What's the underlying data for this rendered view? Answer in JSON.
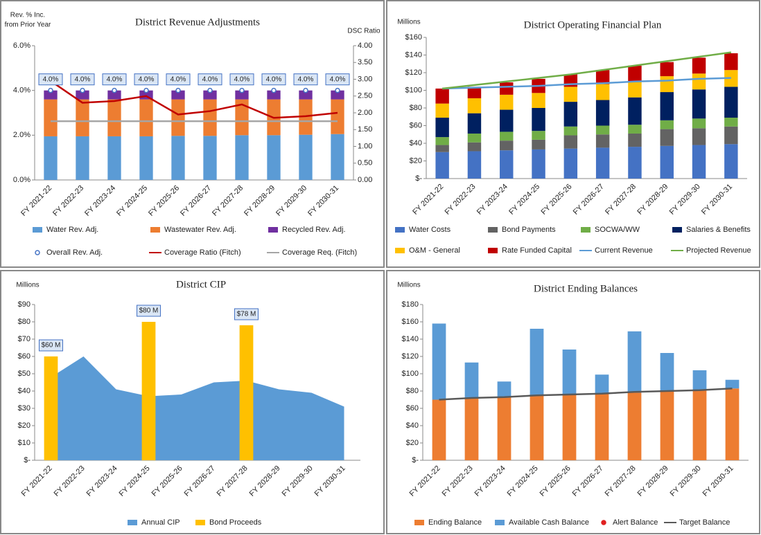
{
  "chart_data": [
    {
      "type": "bar",
      "title": "District Revenue Adjustments",
      "y_label": [
        "Rev. % Inc.",
        "from Prior Year"
      ],
      "y2_label": "DSC Ratio",
      "stacked": true,
      "grid": false,
      "categories": [
        "FY 2021-22",
        "FY 2022-23",
        "FY 2023-24",
        "FY 2024-25",
        "FY 2025-26",
        "FY 2026-27",
        "FY 2027-28",
        "FY 2028-29",
        "FY 2029-30",
        "FY 2030-31"
      ],
      "ylim": [
        0,
        6
      ],
      "yticks": [
        {
          "value": 0,
          "label": "0.0%"
        },
        {
          "value": 2,
          "label": "2.0%"
        },
        {
          "value": 4,
          "label": "4.0%"
        },
        {
          "value": 6,
          "label": "6.0%"
        }
      ],
      "y2lim": [
        0,
        4
      ],
      "y2ticks": [
        {
          "value": 0,
          "label": "0.00"
        },
        {
          "value": 0.5,
          "label": "0.50"
        },
        {
          "value": 1,
          "label": "1.00"
        },
        {
          "value": 1.5,
          "label": "1.50"
        },
        {
          "value": 2,
          "label": "2.00"
        },
        {
          "value": 2.5,
          "label": "2.50"
        },
        {
          "value": 3,
          "label": "3.00"
        },
        {
          "value": 3.5,
          "label": "3.50"
        },
        {
          "value": 4,
          "label": "4.00"
        }
      ],
      "series": [
        {
          "name": "Water Rev. Adj.",
          "kind": "bar",
          "color": "#5b9bd5",
          "values": [
            1.95,
            1.95,
            1.95,
            1.95,
            1.97,
            1.97,
            2.0,
            2.0,
            2.02,
            2.05
          ]
        },
        {
          "name": "Wastewater Rev. Adj.",
          "kind": "bar",
          "color": "#ed7d31",
          "values": [
            1.65,
            1.65,
            1.65,
            1.65,
            1.63,
            1.63,
            1.6,
            1.6,
            1.58,
            1.55
          ]
        },
        {
          "name": "Recycled Rev. Adj.",
          "kind": "bar",
          "color": "#7030a0",
          "values": [
            0.4,
            0.4,
            0.4,
            0.4,
            0.4,
            0.4,
            0.4,
            0.4,
            0.4,
            0.4
          ]
        },
        {
          "name": "Overall Rev. Adj.",
          "kind": "marker",
          "color": "#4472c4",
          "filled": false,
          "values": [
            4,
            4,
            4,
            4,
            4,
            4,
            4,
            4,
            4,
            4
          ],
          "value_labels": [
            "4.0%",
            "4.0%",
            "4.0%",
            "4.0%",
            "4.0%",
            "4.0%",
            "4.0%",
            "4.0%",
            "4.0%",
            "4.0%"
          ]
        },
        {
          "name": "Coverage Ratio (Fitch)",
          "kind": "line",
          "axis": "y2",
          "color": "#c00000",
          "values": [
            2.95,
            2.3,
            2.35,
            2.5,
            1.95,
            2.05,
            2.25,
            1.85,
            1.9,
            2.0
          ]
        },
        {
          "name": "Coverage Req. (Fitch)",
          "kind": "line",
          "axis": "y2",
          "color": "#a5a5a5",
          "values": [
            1.75,
            1.75,
            1.75,
            1.75,
            1.75,
            1.75,
            1.75,
            1.75,
            1.75,
            1.75
          ]
        }
      ]
    },
    {
      "type": "bar",
      "title": "District Operating Financial Plan",
      "y_label": [
        "Millions"
      ],
      "stacked": true,
      "grid": false,
      "categories": [
        "FY 2021-22",
        "FY 2022-23",
        "FY 2023-24",
        "FY 2024-25",
        "FY 2025-26",
        "FY 2026-27",
        "FY 2027-28",
        "FY 2028-29",
        "FY 2029-30",
        "FY 2030-31"
      ],
      "ylim": [
        0,
        160
      ],
      "yticks": [
        {
          "value": 0,
          "label": "$-"
        },
        {
          "value": 20,
          "label": "$20"
        },
        {
          "value": 40,
          "label": "$40"
        },
        {
          "value": 60,
          "label": "$60"
        },
        {
          "value": 80,
          "label": "$80"
        },
        {
          "value": 100,
          "label": "$100"
        },
        {
          "value": 120,
          "label": "$120"
        },
        {
          "value": 140,
          "label": "$140"
        },
        {
          "value": 160,
          "label": "$160"
        }
      ],
      "series": [
        {
          "name": "Water Costs",
          "kind": "bar",
          "color": "#4472c4",
          "values": [
            30,
            31,
            32,
            33,
            34,
            35,
            36,
            37,
            38,
            39
          ]
        },
        {
          "name": "Bond Payments",
          "kind": "bar",
          "color": "#636363",
          "values": [
            8,
            10,
            11,
            11,
            15,
            15,
            15,
            19,
            19,
            20
          ]
        },
        {
          "name": "SOCWA/WW",
          "kind": "bar",
          "color": "#70ad47",
          "values": [
            9,
            10,
            10,
            10,
            10,
            10,
            10,
            10,
            11,
            10
          ]
        },
        {
          "name": "Salaries & Benefits",
          "kind": "bar",
          "color": "#002060",
          "values": [
            22,
            23,
            25,
            26,
            28,
            29,
            31,
            32,
            33,
            35
          ]
        },
        {
          "name": "O&M - General",
          "kind": "bar",
          "color": "#ffc000",
          "values": [
            16,
            17,
            17,
            17,
            17,
            18,
            18,
            18,
            18,
            19
          ]
        },
        {
          "name": "Rate Funded Capital",
          "kind": "bar",
          "color": "#c00000",
          "values": [
            17,
            13,
            14,
            16,
            14,
            16,
            18,
            16,
            18,
            19
          ]
        },
        {
          "name": "Current Revenue",
          "kind": "line",
          "color": "#5b9bd5",
          "values": [
            102,
            103,
            104,
            105,
            107,
            108,
            110,
            111,
            113,
            114
          ]
        },
        {
          "name": "Projected Revenue",
          "kind": "line",
          "color": "#70ad47",
          "values": [
            102,
            106,
            110,
            114,
            118,
            123,
            128,
            133,
            138,
            143
          ]
        }
      ]
    },
    {
      "type": "bar",
      "title": "District CIP",
      "y_label": [
        "Millions"
      ],
      "stacked": false,
      "grid": false,
      "categories": [
        "FY 2021-22",
        "FY 2022-23",
        "FY 2023-24",
        "FY 2024-25",
        "FY 2025-26",
        "FY 2026-27",
        "FY 2027-28",
        "FY 2028-29",
        "FY 2029-30",
        "FY 2030-31"
      ],
      "ylim": [
        0,
        90
      ],
      "yticks": [
        {
          "value": 0,
          "label": "$-"
        },
        {
          "value": 10,
          "label": "$10"
        },
        {
          "value": 20,
          "label": "$20"
        },
        {
          "value": 30,
          "label": "$30"
        },
        {
          "value": 40,
          "label": "$40"
        },
        {
          "value": 50,
          "label": "$50"
        },
        {
          "value": 60,
          "label": "$60"
        },
        {
          "value": 70,
          "label": "$70"
        },
        {
          "value": 80,
          "label": "$80"
        },
        {
          "value": 90,
          "label": "$90"
        }
      ],
      "series": [
        {
          "name": "Annual CIP",
          "kind": "area",
          "color": "#5b9bd5",
          "values": [
            48,
            60,
            41,
            37,
            38,
            45,
            46,
            41,
            39,
            31
          ]
        },
        {
          "name": "Bond Proceeds",
          "kind": "bar",
          "color": "#ffc000",
          "values": [
            60,
            null,
            null,
            80,
            null,
            null,
            78,
            null,
            null,
            null
          ],
          "value_labels": [
            "$60 M",
            null,
            null,
            "$80 M",
            null,
            null,
            "$78 M",
            null,
            null,
            null
          ]
        }
      ]
    },
    {
      "type": "bar",
      "title": "District Ending Balances",
      "y_label": [
        "Millions"
      ],
      "stacked": true,
      "grid": false,
      "categories": [
        "FY 2021-22",
        "FY 2022-23",
        "FY 2023-24",
        "FY 2024-25",
        "FY 2025-26",
        "FY 2026-27",
        "FY 2027-28",
        "FY 2028-29",
        "FY 2029-30",
        "FY 2030-31"
      ],
      "ylim": [
        0,
        180
      ],
      "yticks": [
        {
          "value": 0,
          "label": "$-"
        },
        {
          "value": 20,
          "label": "$20"
        },
        {
          "value": 40,
          "label": "$40"
        },
        {
          "value": 60,
          "label": "$60"
        },
        {
          "value": 80,
          "label": "$80"
        },
        {
          "value": 100,
          "label": "$100"
        },
        {
          "value": 120,
          "label": "$120"
        },
        {
          "value": 140,
          "label": "$140"
        },
        {
          "value": 160,
          "label": "$160"
        },
        {
          "value": 180,
          "label": "$180"
        }
      ],
      "series": [
        {
          "name": "Ending Balance",
          "kind": "bar",
          "color": "#ed7d31",
          "values": [
            70,
            72,
            73,
            75,
            76,
            77,
            78,
            80,
            81,
            83
          ]
        },
        {
          "name": "Available Cash Balance",
          "kind": "bar",
          "color": "#5b9bd5",
          "values": [
            88,
            41,
            18,
            77,
            52,
            22,
            71,
            44,
            23,
            10
          ]
        },
        {
          "name": "Alert Balance",
          "kind": "marker",
          "color": "#e02020",
          "filled": true,
          "values": [
            null,
            null,
            null,
            null,
            null,
            null,
            null,
            null,
            null,
            null
          ]
        },
        {
          "name": "Target Balance",
          "kind": "line",
          "color": "#595959",
          "values": [
            70,
            72,
            73,
            75,
            76,
            77,
            79,
            80,
            81,
            83
          ]
        }
      ]
    }
  ]
}
